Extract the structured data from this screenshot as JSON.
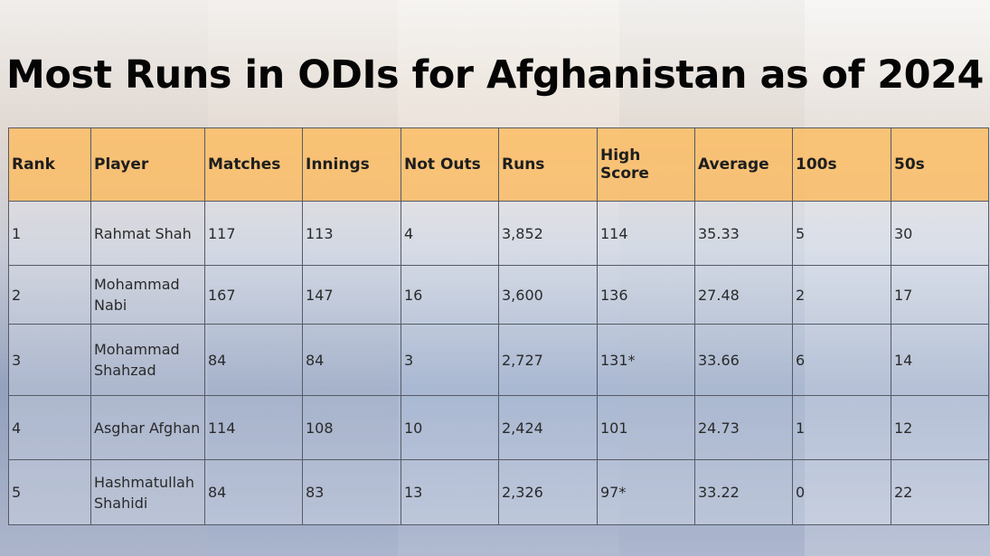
{
  "title": "Most Runs in ODIs for Afghanistan as of 2024",
  "colors": {
    "header_fill": "#FCBC60",
    "text": "#050505",
    "grid": "#555A66"
  },
  "table": {
    "columns": [
      "Rank",
      "Player",
      "Matches",
      "Innings",
      "Not Outs",
      "Runs",
      "High Score",
      "Average",
      "100s",
      "50s"
    ],
    "rows": [
      [
        "1",
        "Rahmat Shah",
        "117",
        "113",
        "4",
        "3,852",
        "114",
        "35.33",
        "5",
        "30"
      ],
      [
        "2",
        "Mohammad Nabi",
        "167",
        "147",
        "16",
        "3,600",
        "136",
        "27.48",
        "2",
        "17"
      ],
      [
        "3",
        "Mohammad Shahzad",
        "84",
        "84",
        "3",
        "2,727",
        "131*",
        "33.66",
        "6",
        "14"
      ],
      [
        "4",
        "Asghar Afghan",
        "114",
        "108",
        "10",
        "2,424",
        "101",
        "24.73",
        "1",
        "12"
      ],
      [
        "5",
        "Hashmatullah Shahidi",
        "84",
        "83",
        "13",
        "2,326",
        "97*",
        "33.22",
        "0",
        "22"
      ]
    ]
  }
}
